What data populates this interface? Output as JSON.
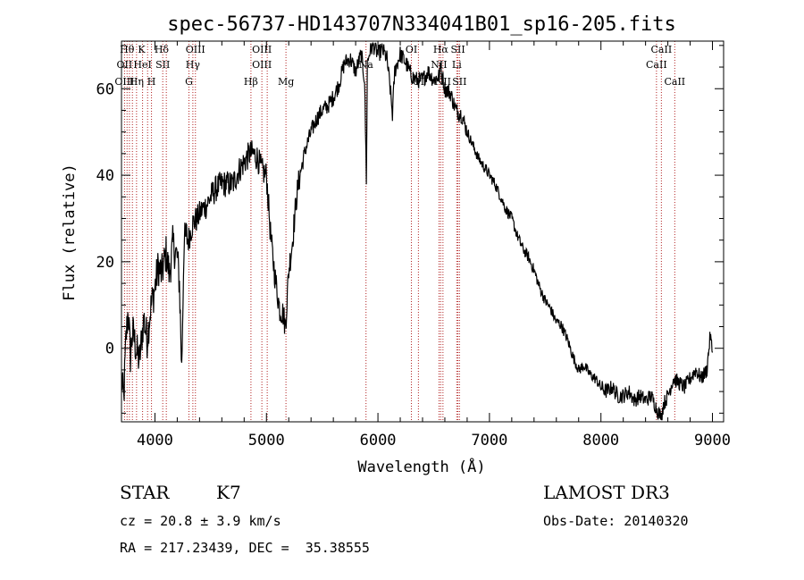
{
  "chart_data": {
    "type": "line",
    "title": "spec-56737-HD143707N334041B01_sp16-205.fits",
    "xlabel": "Wavelength (Å)",
    "ylabel": "Flux (relative)",
    "xlim": [
      3700,
      9100
    ],
    "ylim": [
      -17,
      71
    ],
    "xticks": [
      4000,
      5000,
      6000,
      7000,
      8000,
      9000
    ],
    "yticks": [
      0,
      20,
      40,
      60
    ],
    "grid": false,
    "series": [
      {
        "x": [
          3700,
          3720,
          3740,
          3760,
          3780,
          3800,
          3830,
          3860,
          3900,
          3930,
          3960,
          4000,
          4030,
          4060,
          4100,
          4130,
          4160,
          4200,
          4220,
          4240,
          4260,
          4280,
          4300,
          4320,
          4340,
          4380,
          4420,
          4460,
          4500,
          4550,
          4600,
          4650,
          4700,
          4750,
          4800,
          4850,
          4880,
          4920,
          4960,
          5000,
          5040,
          5080,
          5120,
          5150,
          5170,
          5180,
          5200,
          5230,
          5270,
          5300,
          5350,
          5400,
          5450,
          5500,
          5550,
          5600,
          5650,
          5700,
          5750,
          5800,
          5850,
          5880,
          5892,
          5896,
          5905,
          5930,
          5960,
          6000,
          6040,
          6080,
          6110,
          6130,
          6150,
          6200,
          6250,
          6300,
          6350,
          6400,
          6450,
          6500,
          6550,
          6563,
          6600,
          6650,
          6700,
          6750,
          6800,
          6850,
          6900,
          6950,
          7000,
          7050,
          7100,
          7150,
          7200,
          7250,
          7300,
          7350,
          7400,
          7450,
          7500,
          7550,
          7600,
          7620,
          7650,
          7700,
          7750,
          7800,
          7850,
          7900,
          7950,
          8000,
          8050,
          8100,
          8150,
          8200,
          8250,
          8300,
          8350,
          8400,
          8450,
          8500,
          8540,
          8560,
          8600,
          8650,
          8700,
          8750,
          8800,
          8850,
          8900,
          8950,
          8980,
          9000
        ],
        "y": [
          -7,
          -12,
          2,
          9,
          -2,
          4,
          0,
          -3,
          7,
          2,
          9,
          14,
          19,
          17,
          22,
          17,
          24,
          21,
          15,
          -5,
          24,
          26,
          25,
          27,
          29,
          30,
          32,
          33,
          35,
          37,
          38,
          38,
          38,
          41,
          43,
          45,
          45,
          44,
          41,
          40,
          25,
          16,
          9,
          8,
          5,
          9,
          18,
          24,
          35,
          40,
          46,
          50,
          53,
          55,
          56,
          58,
          61,
          66,
          67,
          64,
          68,
          62,
          45,
          39,
          66,
          69,
          70,
          68,
          69,
          67,
          60,
          54,
          64,
          68,
          66,
          63,
          62,
          62,
          64,
          62,
          63,
          65,
          60,
          59,
          55,
          54,
          50,
          47,
          44,
          42,
          40,
          38,
          35,
          32,
          30,
          26,
          23,
          21,
          18,
          14,
          11,
          9,
          6,
          6,
          5,
          2,
          -2,
          -5,
          -4,
          -6,
          -7,
          -9,
          -10,
          -9,
          -11,
          -11,
          -10,
          -12,
          -11,
          -12,
          -11,
          -14,
          -16,
          -13,
          -11,
          -7,
          -8,
          -9,
          -7,
          -5,
          -7,
          -5,
          3,
          -1
        ],
        "color": "#000000"
      }
    ],
    "spectral_lines": [
      {
        "label": "Hθ",
        "x": 3750,
        "row": 0
      },
      {
        "label": "OII",
        "x": 3727,
        "row": 1
      },
      {
        "label": "OIII",
        "x": 3727,
        "row": 2
      },
      {
        "label": "K",
        "x": 3880,
        "row": 0
      },
      {
        "label": "HeI",
        "x": 3889,
        "row": 1
      },
      {
        "label": "Hη",
        "x": 3835,
        "row": 2
      },
      {
        "label": "Hδ",
        "x": 4060,
        "row": 0
      },
      {
        "label": "SII",
        "x": 4070,
        "row": 1
      },
      {
        "label": "H",
        "x": 3969,
        "row": 2
      },
      {
        "label": "OIII",
        "x": 4363,
        "row": 0
      },
      {
        "label": "Hγ",
        "x": 4340,
        "row": 1
      },
      {
        "label": "G",
        "x": 4305,
        "row": 2
      },
      {
        "label": "OIII",
        "x": 4959,
        "row": 0
      },
      {
        "label": "OIII",
        "x": 4959,
        "row": 1
      },
      {
        "label": "Hβ",
        "x": 4861,
        "row": 2
      },
      {
        "label": "Mg",
        "x": 5175,
        "row": 2
      },
      {
        "label": "Na",
        "x": 5893,
        "row": 1
      },
      {
        "label": "OI",
        "x": 6300,
        "row": 0
      },
      {
        "label": "OI",
        "x": 6363,
        "row": 2
      },
      {
        "label": "Hα",
        "x": 6563,
        "row": 0
      },
      {
        "label": "SII",
        "x": 6717,
        "row": 0
      },
      {
        "label": "NII",
        "x": 6548,
        "row": 1
      },
      {
        "label": "Li",
        "x": 6707,
        "row": 1
      },
      {
        "label": "NII",
        "x": 6583,
        "row": 2
      },
      {
        "label": "SII",
        "x": 6731,
        "row": 2
      },
      {
        "label": "CaII",
        "x": 8542,
        "row": 0
      },
      {
        "label": "CaII",
        "x": 8498,
        "row": 1
      },
      {
        "label": "CaII",
        "x": 8662,
        "row": 2
      }
    ],
    "line_marker_positions": [
      3727,
      3750,
      3771,
      3798,
      3835,
      3889,
      3934,
      3969,
      4070,
      4102,
      4305,
      4340,
      4363,
      4861,
      4959,
      5007,
      5175,
      5893,
      6300,
      6363,
      6548,
      6563,
      6583,
      6707,
      6717,
      6731,
      8498,
      8542,
      8662
    ]
  },
  "info": {
    "object_class": "STAR",
    "subclass": "K7",
    "survey": "LAMOST DR3",
    "redshift": "cz = 20.8 ± 3.9 km/s",
    "obs_date": "Obs-Date: 20140320",
    "coords": "RA = 217.23439, DEC =  35.38555"
  }
}
